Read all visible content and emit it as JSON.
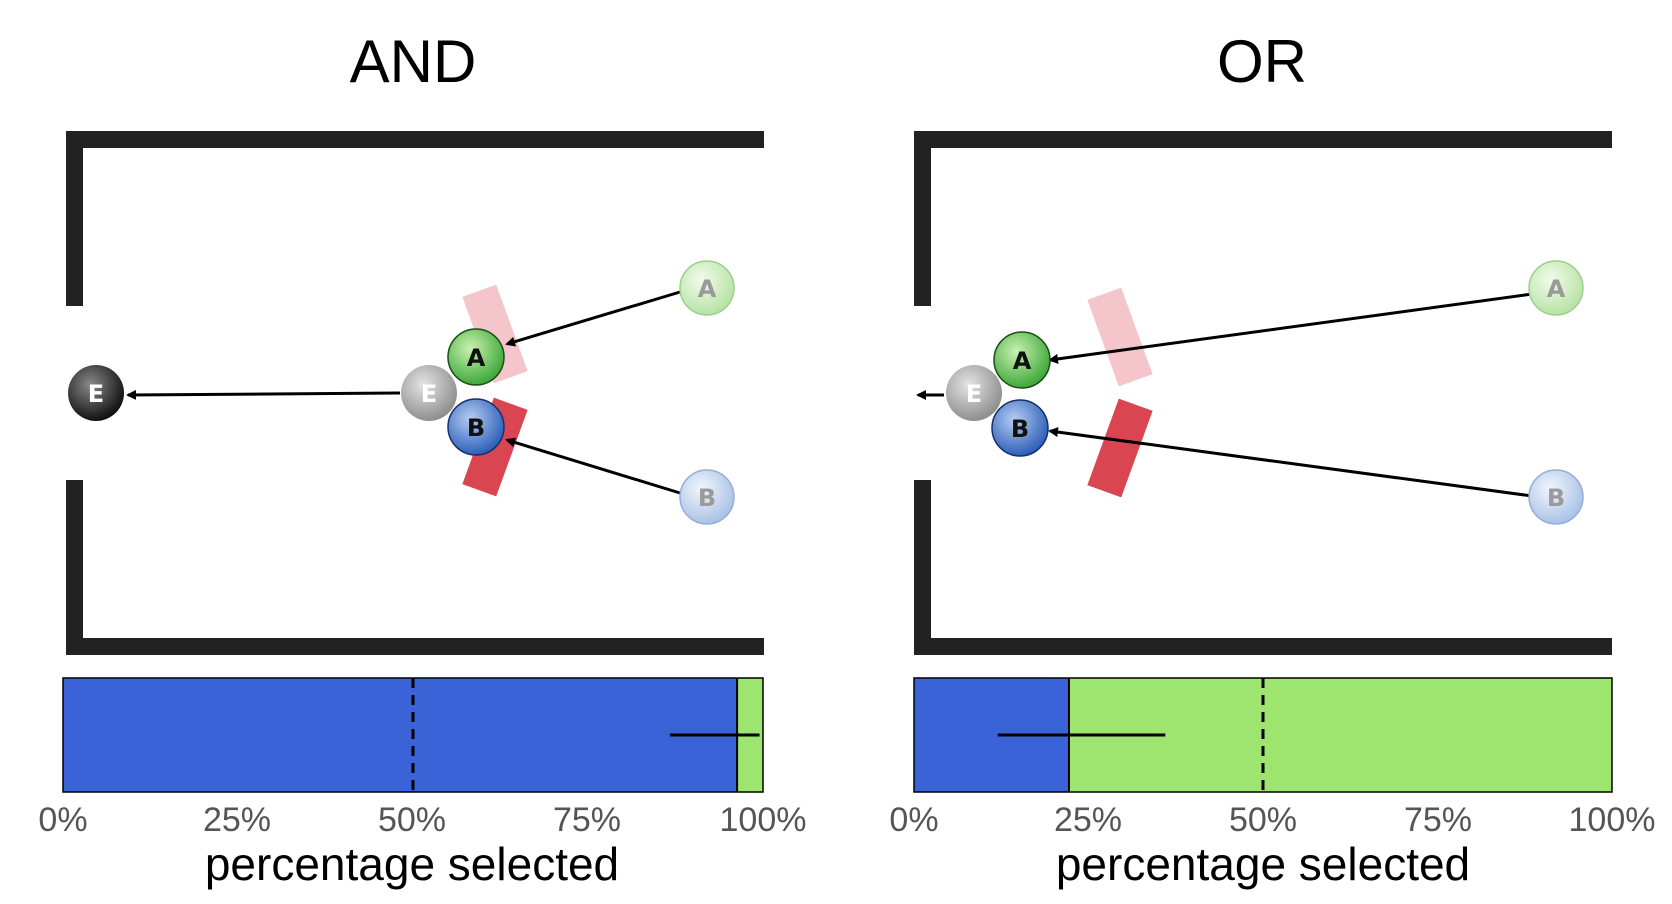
{
  "panels": [
    {
      "title": "AND",
      "balls": {
        "A_start": "A",
        "B_start": "B",
        "A_mid": "A",
        "B_mid": "B",
        "E_mid": "E",
        "E_end": "E"
      },
      "bar": {
        "blue_fraction": 0.963,
        "error_low": 0.867,
        "error_high": 0.995,
        "dashed_at": 0.5
      }
    },
    {
      "title": "OR",
      "balls": {
        "A_start": "A",
        "B_start": "B",
        "A_mid": "A",
        "B_mid": "B",
        "E_mid": "E"
      },
      "bar": {
        "blue_fraction": 0.222,
        "error_low": 0.12,
        "error_high": 0.36,
        "dashed_at": 0.5
      }
    }
  ],
  "axis": {
    "ticks": [
      "0%",
      "25%",
      "50%",
      "75%",
      "100%"
    ],
    "xlabel": "percentage selected"
  },
  "colors": {
    "blue": "#3a63d8",
    "green": "#9de56f",
    "red": "#d94550",
    "pink": "#f4c6cb",
    "wall": "#222222"
  }
}
